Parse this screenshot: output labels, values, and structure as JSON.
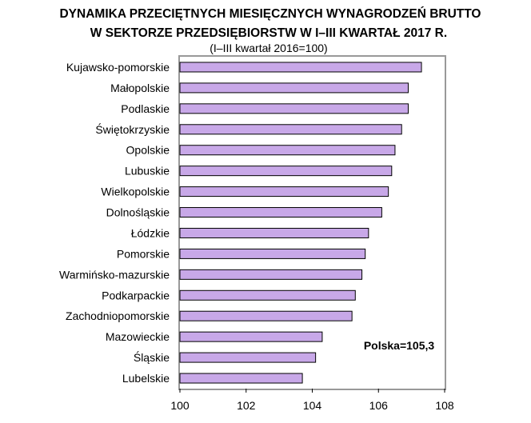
{
  "chart_data": {
    "type": "bar",
    "orientation": "horizontal",
    "title": "DYNAMIKA PRZECIĘTNYCH MIESIĘCZNYCH WYNAGRODZEŃ BRUTTO",
    "title_line2": "W  SEKTORZE PRZEDSIĘBIORSTW W  I–III KWARTAŁ 2017 R.",
    "subtitle": "(I–III kwartał 2016=100)",
    "categories": [
      "Kujawsko-pomorskie",
      "Małopolskie",
      "Podlaskie",
      "Świętokrzyskie",
      "Opolskie",
      "Lubuskie",
      "Wielkopolskie",
      "Dolnośląskie",
      "Łódzkie",
      "Pomorskie",
      "Warmińsko-mazurskie",
      "Podkarpackie",
      "Zachodniopomorskie",
      "Mazowieckie",
      "Śląskie",
      "Lubelskie"
    ],
    "values": [
      107.3,
      106.9,
      106.9,
      106.7,
      106.5,
      106.4,
      106.3,
      106.1,
      105.7,
      105.6,
      105.5,
      105.3,
      105.2,
      104.3,
      104.1,
      103.7
    ],
    "xlim": [
      100,
      108
    ],
    "ticks": [
      100,
      102,
      104,
      106,
      108
    ],
    "annotation": "Polska=105,3",
    "bar_color": "#c8a8e8",
    "bar_outline": "#000000",
    "frame_color": "#999999",
    "grid": false,
    "legend": "none"
  }
}
